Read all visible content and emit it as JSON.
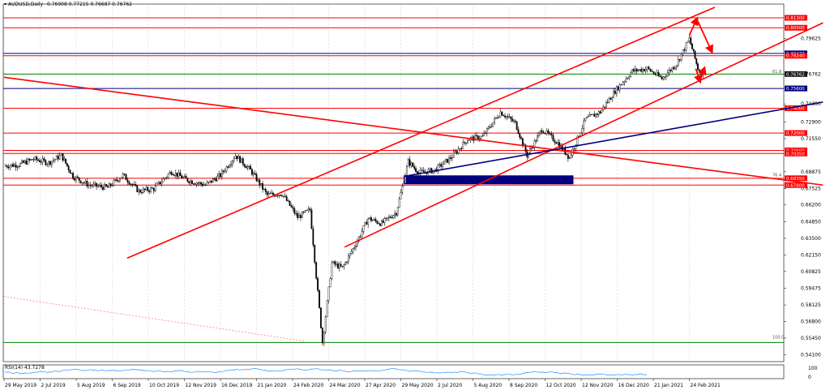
{
  "header": {
    "symbol_label": "AUDUSD,Daily",
    "ohlc": "0.76908 0.77215 0.76687 0.76762"
  },
  "indicator": {
    "label": "RSI(14) 43.7278",
    "levels": [
      "100",
      "0"
    ]
  },
  "colors": {
    "candle": "#000000",
    "resistance": "#ff0000",
    "support": "#0000a0",
    "fib": "#008000",
    "rsi": "#1e90ff",
    "grid": "#c0c0c0",
    "label_red": "#ff0000",
    "label_navy": "#000080",
    "label_dark": "#1a1a1a"
  },
  "chart_data": {
    "type": "candlestick",
    "symbol": "AUDUSD",
    "timeframe": "Daily",
    "x_tick_labels": [
      "29 May 2019",
      "2 Jul 2019",
      "5 Aug 2019",
      "6 Sep 2019",
      "10 Oct 2019",
      "12 Nov 2019",
      "16 Dec 2019",
      "21 Jan 2020",
      "24 Feb 2020",
      "24 Mar 2020",
      "27 Apr 2020",
      "29 May 2020",
      "2 Jul 2020",
      "5 Aug 2020",
      "8 Sep 2020",
      "12 Oct 2020",
      "12 Nov 2020",
      "16 Dec 2020",
      "21 Jan 2021",
      "24 Feb 2021"
    ],
    "y_tick_labels": [
      "0.79625",
      "0.76762",
      "0.74350",
      "0.72900",
      "0.71550",
      "0.68875",
      "0.67525",
      "0.66200",
      "0.64850",
      "0.63500",
      "0.62150",
      "0.60825",
      "0.59475",
      "0.58125",
      "0.56800",
      "0.55450",
      "0.54100"
    ],
    "y_range": [
      0.5355,
      0.8215
    ],
    "horizontal_levels": [
      {
        "price": 0.813,
        "label": "0.81300",
        "color": "#ff0000",
        "style": "label-red"
      },
      {
        "price": 0.805,
        "label": "0.80500",
        "color": "#ff0000",
        "style": "label-red"
      },
      {
        "price": 0.7843,
        "label": "0.78430",
        "color": "#000080",
        "style": "label-navy"
      },
      {
        "price": 0.7824,
        "label": "0.78240",
        "color": "#ff0000",
        "style": "label-red"
      },
      {
        "price": 0.76762,
        "label": "0.76762",
        "color": "#008000",
        "style": "label-dark"
      },
      {
        "price": 0.756,
        "label": "0.75600",
        "color": "#000080",
        "style": "label-navy"
      },
      {
        "price": 0.74,
        "label": "0.74000",
        "color": "#ff0000",
        "style": "label-red"
      },
      {
        "price": 0.72,
        "label": "0.72000",
        "color": "#ff0000",
        "style": "label-red"
      },
      {
        "price": 0.706,
        "label": "0.70600",
        "color": "#ff0000",
        "style": "label-red"
      },
      {
        "price": 0.7035,
        "label": "0.70350",
        "color": "#ff0000",
        "style": "label-red"
      },
      {
        "price": 0.6835,
        "label": "0.68350",
        "color": "#ff0000",
        "style": "label-red"
      },
      {
        "price": 0.678,
        "label": "0.67800",
        "color": "#ff0000",
        "style": "label-red"
      },
      {
        "price": 0.551,
        "label": "",
        "color": "#008000",
        "style": "none"
      }
    ],
    "fib_labels": [
      {
        "text": "61.8",
        "price": 0.76762
      },
      {
        "text": "76.4",
        "price": 0.684
      },
      {
        "text": "100.0",
        "price": 0.5532
      }
    ],
    "ohlc_close_series": [
      {
        "date": "2019-05-29",
        "close": 0.6935
      },
      {
        "date": "2019-06-12",
        "close": 0.6945
      },
      {
        "date": "2019-06-26",
        "close": 0.699
      },
      {
        "date": "2019-07-10",
        "close": 0.696
      },
      {
        "date": "2019-07-22",
        "close": 0.702
      },
      {
        "date": "2019-08-02",
        "close": 0.685
      },
      {
        "date": "2019-08-16",
        "close": 0.678
      },
      {
        "date": "2019-09-02",
        "close": 0.676
      },
      {
        "date": "2019-09-16",
        "close": 0.686
      },
      {
        "date": "2019-10-01",
        "close": 0.673
      },
      {
        "date": "2019-10-15",
        "close": 0.675
      },
      {
        "date": "2019-10-31",
        "close": 0.689
      },
      {
        "date": "2019-11-15",
        "close": 0.682
      },
      {
        "date": "2019-12-02",
        "close": 0.678
      },
      {
        "date": "2019-12-16",
        "close": 0.686
      },
      {
        "date": "2019-12-31",
        "close": 0.702
      },
      {
        "date": "2020-01-15",
        "close": 0.69
      },
      {
        "date": "2020-01-31",
        "close": 0.67
      },
      {
        "date": "2020-02-14",
        "close": 0.671
      },
      {
        "date": "2020-02-28",
        "close": 0.652
      },
      {
        "date": "2020-03-09",
        "close": 0.658
      },
      {
        "date": "2020-03-19",
        "close": 0.551
      },
      {
        "date": "2020-03-27",
        "close": 0.615
      },
      {
        "date": "2020-04-06",
        "close": 0.611
      },
      {
        "date": "2020-04-20",
        "close": 0.633
      },
      {
        "date": "2020-04-30",
        "close": 0.651
      },
      {
        "date": "2020-05-12",
        "close": 0.647
      },
      {
        "date": "2020-05-25",
        "close": 0.656
      },
      {
        "date": "2020-06-05",
        "close": 0.697
      },
      {
        "date": "2020-06-15",
        "close": 0.688
      },
      {
        "date": "2020-06-30",
        "close": 0.69
      },
      {
        "date": "2020-07-15",
        "close": 0.7
      },
      {
        "date": "2020-07-31",
        "close": 0.715
      },
      {
        "date": "2020-08-14",
        "close": 0.717
      },
      {
        "date": "2020-08-31",
        "close": 0.737
      },
      {
        "date": "2020-09-14",
        "close": 0.728
      },
      {
        "date": "2020-09-25",
        "close": 0.702
      },
      {
        "date": "2020-10-09",
        "close": 0.723
      },
      {
        "date": "2020-10-23",
        "close": 0.712
      },
      {
        "date": "2020-11-02",
        "close": 0.7
      },
      {
        "date": "2020-11-16",
        "close": 0.731
      },
      {
        "date": "2020-11-30",
        "close": 0.737
      },
      {
        "date": "2020-12-14",
        "close": 0.754
      },
      {
        "date": "2020-12-31",
        "close": 0.77
      },
      {
        "date": "2021-01-15",
        "close": 0.772
      },
      {
        "date": "2021-01-29",
        "close": 0.764
      },
      {
        "date": "2021-02-12",
        "close": 0.776
      },
      {
        "date": "2021-02-24",
        "close": 0.796
      },
      {
        "date": "2021-03-04",
        "close": 0.772
      },
      {
        "date": "2021-03-09",
        "close": 0.76762
      }
    ],
    "trendlines": [
      {
        "name": "upper-channel",
        "color": "#ff0000",
        "from": {
          "date": "2019-09-20",
          "price": 0.619
        },
        "to": {
          "date": "2021-03-20",
          "price": 0.8215
        }
      },
      {
        "name": "lower-channel",
        "color": "#ff0000",
        "from": {
          "date": "2020-04-08",
          "price": 0.628
        },
        "to": {
          "date": "2021-06-30",
          "price": 0.809
        }
      },
      {
        "name": "long-downtrend",
        "color": "#ff0000",
        "from": {
          "date": "2019-05-29",
          "price": 0.765
        },
        "to": {
          "date": "2021-06-30",
          "price": 0.678
        }
      },
      {
        "name": "rising-support",
        "color": "#000080",
        "from": {
          "date": "2020-06-01",
          "price": 0.685
        },
        "to": {
          "date": "2021-06-30",
          "price": 0.745
        }
      },
      {
        "name": "dotted-decline",
        "color": "#ff8080",
        "from": {
          "date": "2019-05-29",
          "price": 0.588
        },
        "to": {
          "date": "2020-03-05",
          "price": 0.552
        }
      }
    ],
    "arrows": [
      {
        "from": {
          "date": "2021-02-24",
          "price": 0.799
        },
        "to": {
          "date": "2021-03-03",
          "price": 0.812
        }
      },
      {
        "from": {
          "date": "2021-03-03",
          "price": 0.812
        },
        "to": {
          "date": "2021-03-17",
          "price": 0.786
        }
      },
      {
        "from": {
          "date": "2021-03-02",
          "price": 0.772
        },
        "to": {
          "date": "2021-03-06",
          "price": 0.762
        }
      },
      {
        "from": {
          "date": "2021-03-06",
          "price": 0.762
        },
        "to": {
          "date": "2021-03-10",
          "price": 0.772
        }
      }
    ],
    "zone": {
      "from": {
        "date": "2020-06-01",
        "price": 0.6855
      },
      "to": {
        "date": "2020-11-05",
        "price": 0.679
      },
      "color": "#000080"
    }
  }
}
